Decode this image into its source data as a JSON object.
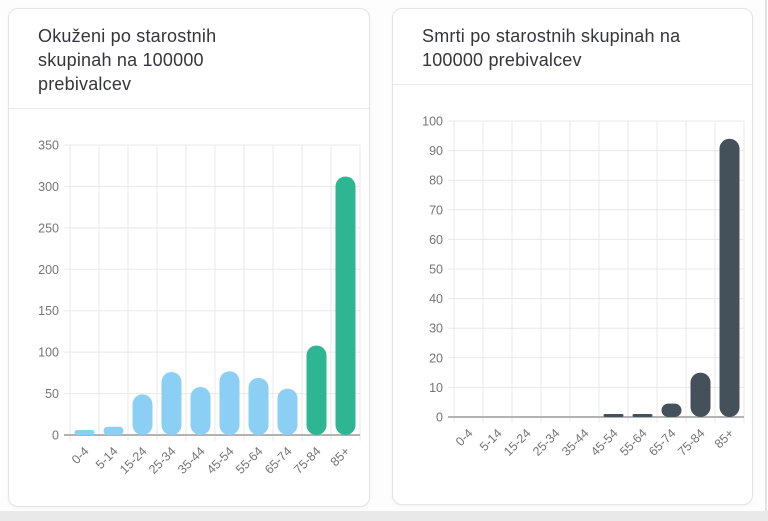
{
  "cards": [
    {
      "title": "Okuženi po starostnih skupinah na 100000 prebivalcev"
    },
    {
      "title": "Smrti po starostnih skupinah na 100000 prebivalcev"
    }
  ],
  "chart_data": [
    {
      "type": "bar",
      "title": "Okuženi po starostnih skupinah na 100000 prebivalcev",
      "xlabel": "",
      "ylabel": "",
      "categories": [
        "0-4",
        "5-14",
        "15-24",
        "25-34",
        "35-44",
        "45-54",
        "55-64",
        "65-74",
        "75-84",
        "85+"
      ],
      "values": [
        6,
        10,
        49,
        76,
        58,
        77,
        69,
        56,
        108,
        312
      ],
      "bar_colors": [
        "#8ccff4",
        "#8ccff4",
        "#8ccff4",
        "#8ccff4",
        "#8ccff4",
        "#8ccff4",
        "#8ccff4",
        "#8ccff4",
        "#2eb592",
        "#2eb592"
      ],
      "ylim": [
        0,
        350
      ],
      "ytick_step": 50,
      "ytick_labels": [
        "0",
        "50",
        "100",
        "150",
        "200",
        "250",
        "300",
        "350"
      ],
      "grid": true,
      "legend": false,
      "grid_color": "#e8e8e8",
      "axis_color": "#b2b2b2",
      "tick_label_color": "#757575"
    },
    {
      "type": "bar",
      "title": "Smrti po starostnih skupinah na 100000 prebivalcev",
      "xlabel": "",
      "ylabel": "",
      "categories": [
        "0-4",
        "5-14",
        "15-24",
        "25-34",
        "35-44",
        "45-54",
        "55-64",
        "65-74",
        "75-84",
        "85+"
      ],
      "values": [
        0,
        0,
        0,
        0,
        0,
        1,
        1,
        4.5,
        15,
        94
      ],
      "bar_colors": [
        "#44505a",
        "#44505a",
        "#44505a",
        "#44505a",
        "#44505a",
        "#44505a",
        "#44505a",
        "#44505a",
        "#44505a",
        "#44505a"
      ],
      "ylim": [
        0,
        100
      ],
      "ytick_step": 10,
      "ytick_labels": [
        "0",
        "10",
        "20",
        "30",
        "40",
        "50",
        "60",
        "70",
        "80",
        "90",
        "100"
      ],
      "grid": true,
      "legend": false,
      "grid_color": "#e8e8e8",
      "axis_color": "#b2b2b2",
      "tick_label_color": "#757575"
    }
  ]
}
